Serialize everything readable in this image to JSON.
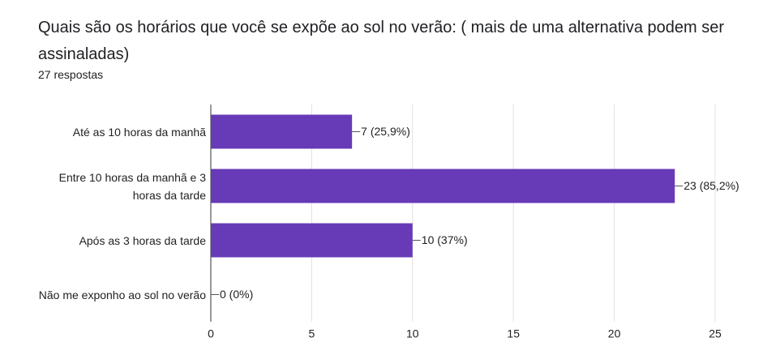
{
  "chart_data": {
    "type": "bar",
    "orientation": "horizontal",
    "title": "Quais são os horários que você se expõe ao sol no verão: ( mais de uma alternativa podem ser assinaladas)",
    "subtitle": "27 respostas",
    "categories": [
      "Até as 10 horas da manhã",
      "Entre 10 horas da manhã e 3 horas da tarde",
      "Após as 3 horas da tarde",
      "Não me exponho ao sol no verão"
    ],
    "values": [
      7,
      23,
      10,
      0
    ],
    "value_labels": [
      "7 (25,9%)",
      "23 (85,2%)",
      "10 (37%)",
      "0 (0%)"
    ],
    "color": "#673ab7",
    "xlim": [
      0,
      25
    ],
    "xticks": [
      0,
      5,
      10,
      15,
      20,
      25
    ],
    "grid": true
  }
}
